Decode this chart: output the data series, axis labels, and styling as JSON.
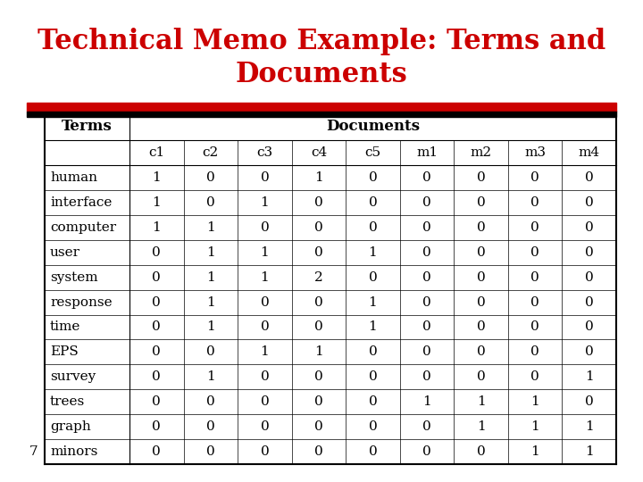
{
  "title_line1": "Technical Memo Example: Terms and",
  "title_line2": "Documents",
  "title_color": "#cc0000",
  "title_fontsize": 22,
  "title_font": "serif",
  "bg_color": "#ffffff",
  "terms_label": "Terms",
  "docs_label": "Documents",
  "col_headers": [
    "c1",
    "c2",
    "c3",
    "c4",
    "c5",
    "m1",
    "m2",
    "m3",
    "m4"
  ],
  "row_labels": [
    "human",
    "interface",
    "computer",
    "user",
    "system",
    "response",
    "time",
    "EPS",
    "survey",
    "trees",
    "graph",
    "minors"
  ],
  "left_number": "7",
  "table_data": [
    [
      1,
      0,
      0,
      1,
      0,
      0,
      0,
      0,
      0
    ],
    [
      1,
      0,
      1,
      0,
      0,
      0,
      0,
      0,
      0
    ],
    [
      1,
      1,
      0,
      0,
      0,
      0,
      0,
      0,
      0
    ],
    [
      0,
      1,
      1,
      0,
      1,
      0,
      0,
      0,
      0
    ],
    [
      0,
      1,
      1,
      2,
      0,
      0,
      0,
      0,
      0
    ],
    [
      0,
      1,
      0,
      0,
      1,
      0,
      0,
      0,
      0
    ],
    [
      0,
      1,
      0,
      0,
      1,
      0,
      0,
      0,
      0
    ],
    [
      0,
      0,
      1,
      1,
      0,
      0,
      0,
      0,
      0
    ],
    [
      0,
      1,
      0,
      0,
      0,
      0,
      0,
      0,
      1
    ],
    [
      0,
      0,
      0,
      0,
      0,
      1,
      1,
      1,
      0
    ],
    [
      0,
      0,
      0,
      0,
      0,
      0,
      1,
      1,
      1
    ],
    [
      0,
      0,
      0,
      0,
      0,
      0,
      0,
      1,
      1
    ]
  ],
  "table_font": "serif",
  "table_fontsize": 11,
  "header_fontsize": 12,
  "stripe_red": "#cc0000",
  "stripe_black": "#000000"
}
